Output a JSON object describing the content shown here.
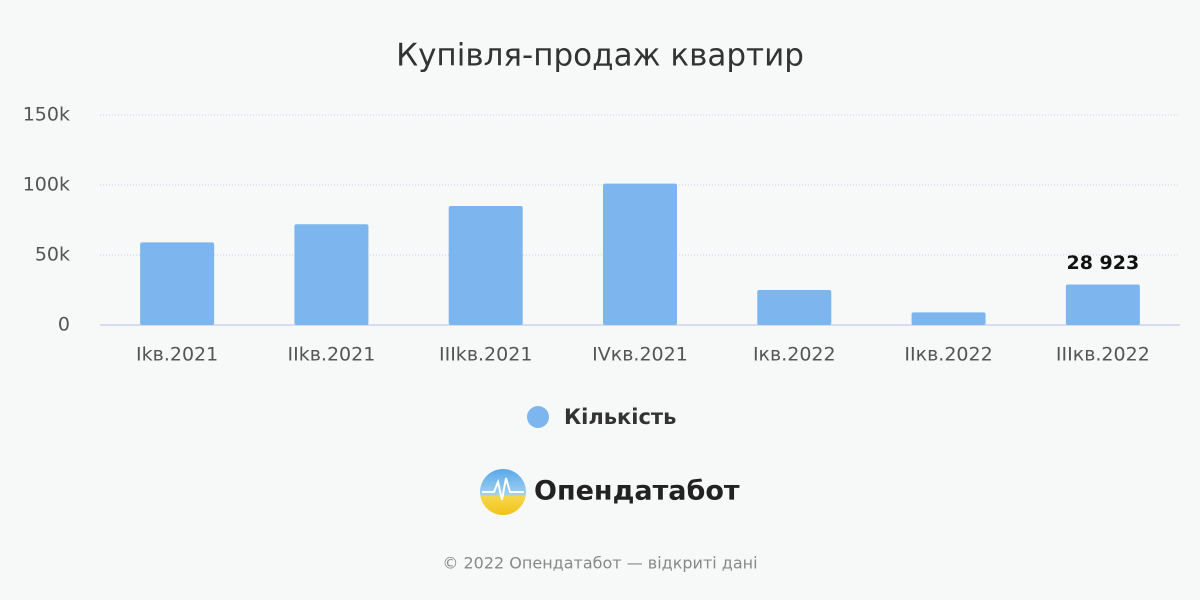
{
  "chart_data": {
    "type": "bar",
    "title": "Купівля-продаж квартир",
    "categories": [
      "Іkв.2021",
      "ІІkв.2021",
      "ІІІkв.2021",
      "IVкв.2021",
      "Ікв.2022",
      "ІІкв.2022",
      "ІІІкв.2022"
    ],
    "series": [
      {
        "name": "Кількість",
        "color": "#7db5ee",
        "values": [
          59000,
          72000,
          85000,
          101000,
          25000,
          9000,
          28923
        ],
        "value_labels": [
          null,
          null,
          null,
          null,
          null,
          null,
          "28 923"
        ]
      }
    ],
    "ylim": [
      0,
      150000
    ],
    "yticks": [
      0,
      {
        "value": 50000,
        "label": "50k"
      },
      {
        "value": 100000,
        "label": "100k"
      },
      {
        "value": 150000,
        "label": "150k"
      }
    ],
    "grid": true
  },
  "logo": "Опендатабот",
  "footer": "© 2022 Опендатабот — відкриті дані"
}
